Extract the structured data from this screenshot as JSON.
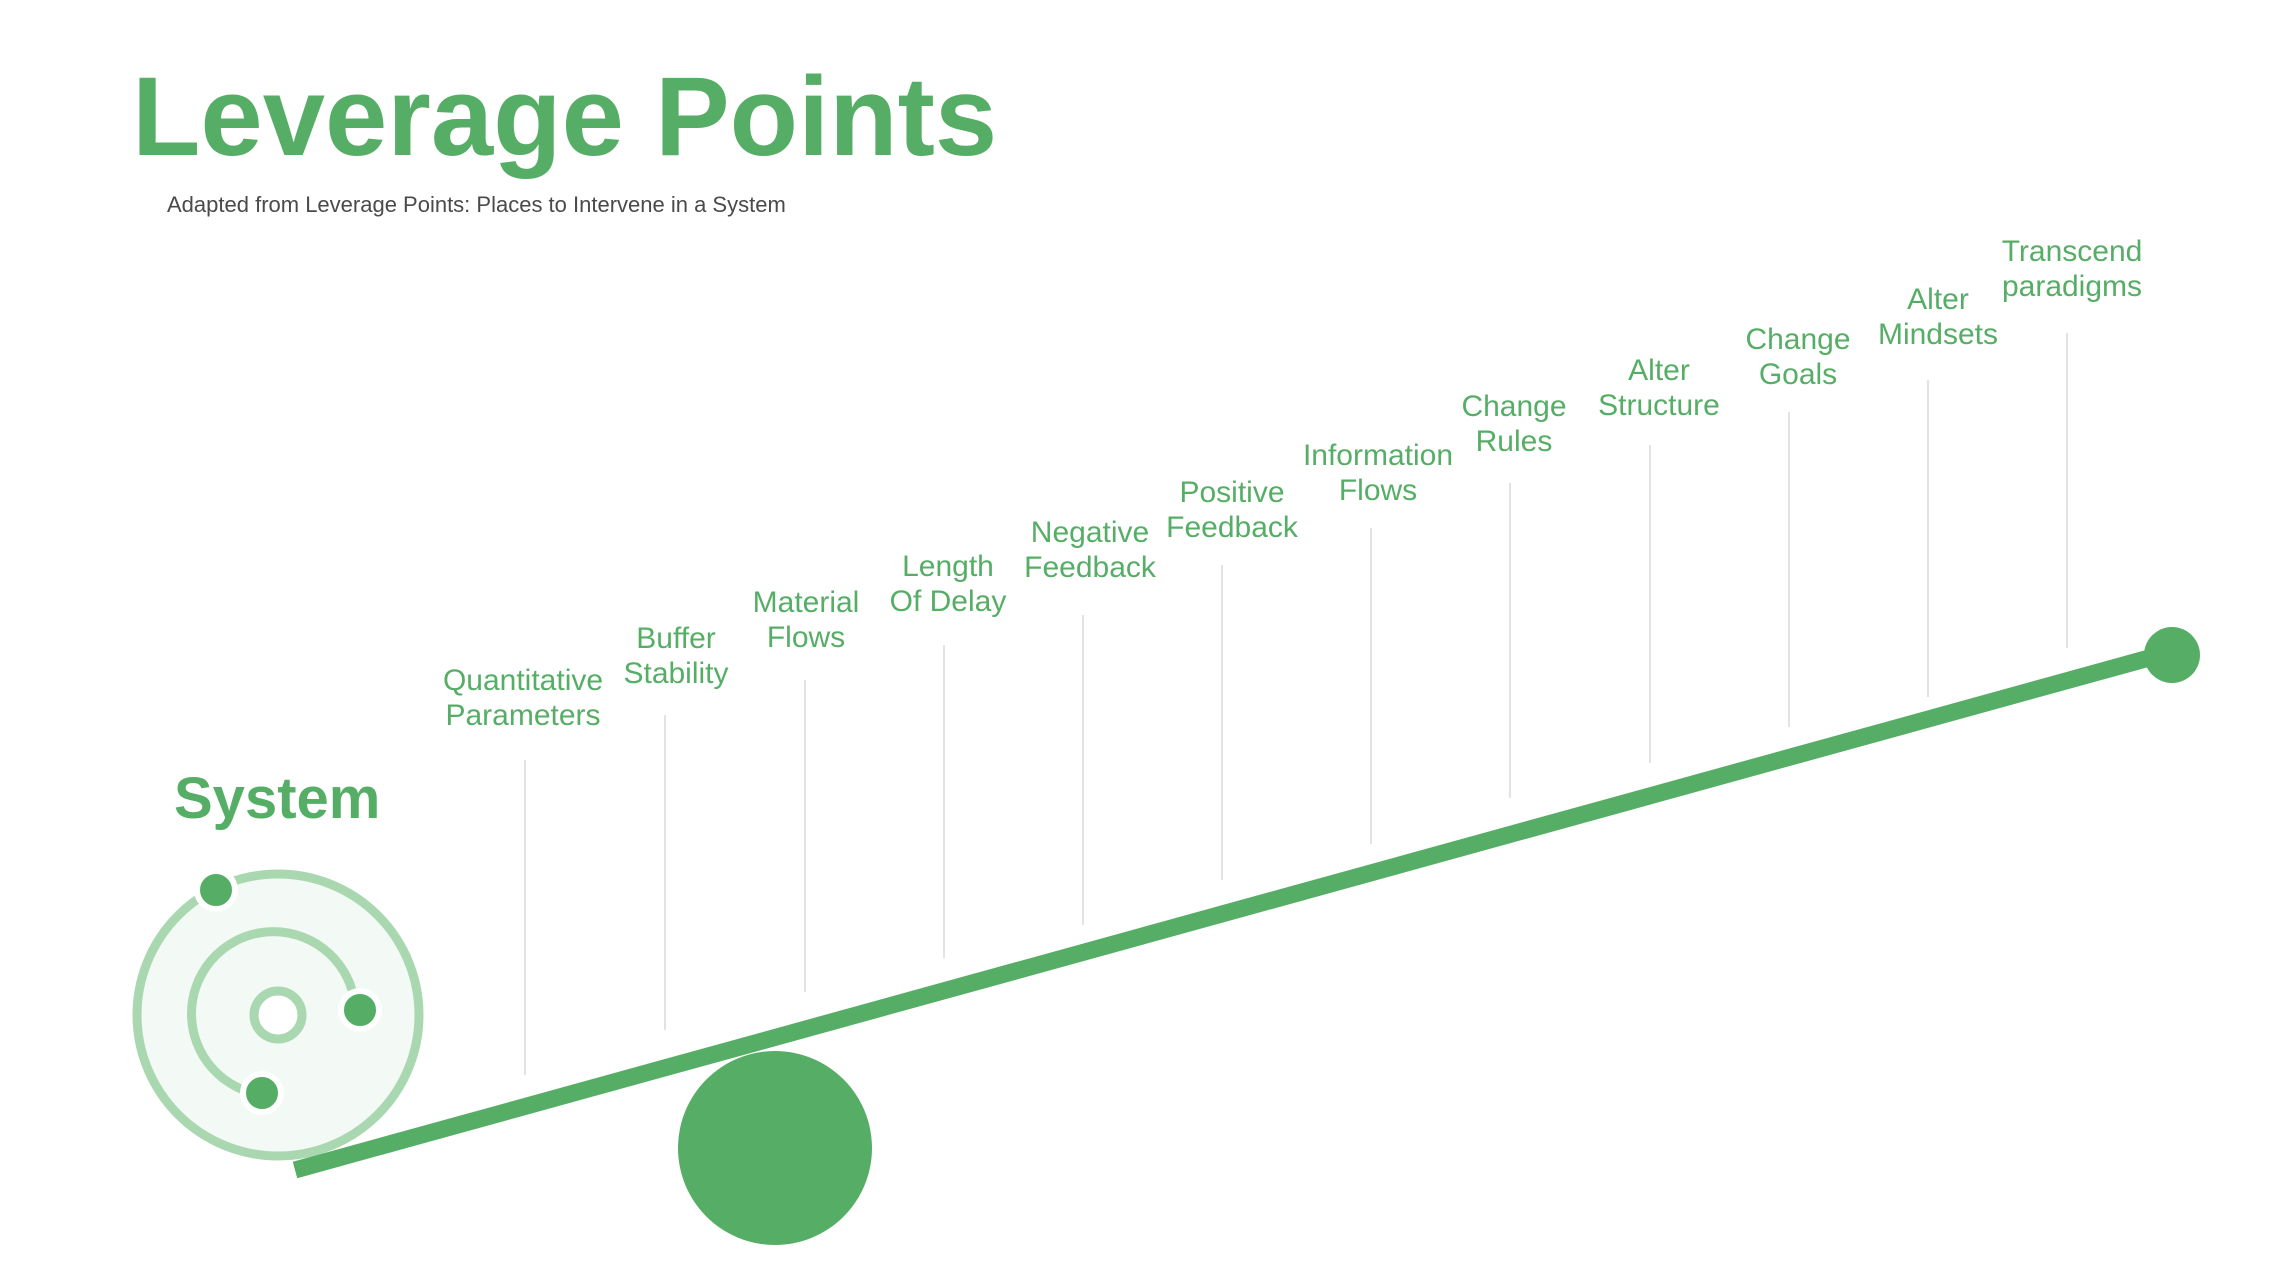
{
  "title": "Leverage Points",
  "subtitle": "Adapted from Leverage Points: Places to Intervene in a System",
  "system_label": "System",
  "colors": {
    "accent": "#56ae66",
    "accent_light": "#a9d8b0",
    "system_fill": "#f3f9f4",
    "guide_line": "#e3e3e3",
    "subtitle_text": "#4a4a4a"
  },
  "leverage_points": [
    {
      "lines": [
        "Quantitative",
        "Parameters"
      ]
    },
    {
      "lines": [
        "Buffer",
        "Stability"
      ]
    },
    {
      "lines": [
        "Material",
        "Flows"
      ]
    },
    {
      "lines": [
        "Length",
        "Of Delay"
      ]
    },
    {
      "lines": [
        "Negative",
        "Feedback"
      ]
    },
    {
      "lines": [
        "Positive",
        "Feedback"
      ]
    },
    {
      "lines": [
        "Information",
        "Flows"
      ]
    },
    {
      "lines": [
        "Change",
        "Rules"
      ]
    },
    {
      "lines": [
        "Alter",
        "Structure"
      ]
    },
    {
      "lines": [
        "Change",
        "Goals"
      ]
    },
    {
      "lines": [
        "Alter",
        "Mindsets"
      ]
    },
    {
      "lines": [
        "Transcend",
        "paradigms"
      ]
    }
  ]
}
